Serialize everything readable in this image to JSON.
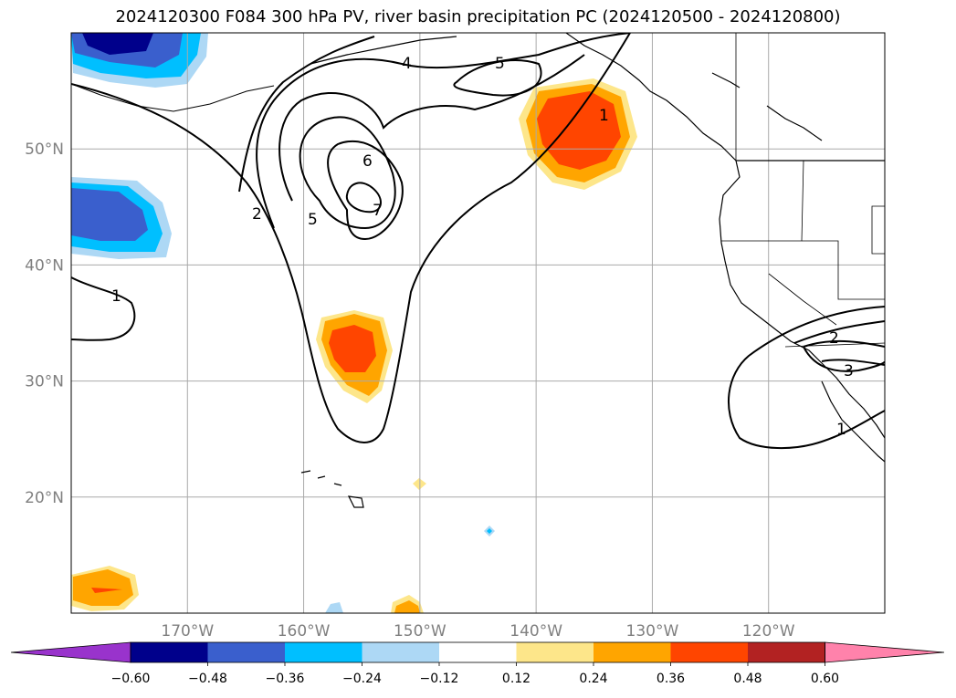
{
  "title": "2024120300 F084 300 hPa PV, river basin precipitation PC (2024120500 - 2024120800)",
  "map": {
    "lon_range": [
      -180,
      -110
    ],
    "lat_range": [
      10,
      60
    ],
    "lat_ticks": [
      {
        "value": 50,
        "label": "50°N"
      },
      {
        "value": 40,
        "label": "40°N"
      },
      {
        "value": 30,
        "label": "30°N"
      },
      {
        "value": 20,
        "label": "20°N"
      }
    ],
    "lon_ticks": [
      {
        "value": -170,
        "label": "170°W"
      },
      {
        "value": -160,
        "label": "160°W"
      },
      {
        "value": -150,
        "label": "150°W"
      },
      {
        "value": -140,
        "label": "140°W"
      },
      {
        "value": -130,
        "label": "130°W"
      },
      {
        "value": -120,
        "label": "120°W"
      }
    ],
    "grid": true
  },
  "pv_contour_labels": [
    "1",
    "2",
    "4",
    "5",
    "5",
    "6",
    "7",
    "1",
    "1",
    "2",
    "3"
  ],
  "colorbar": {
    "colors": [
      "#9933cc",
      "#00008b",
      "#3a5fcd",
      "#00bfff",
      "#add8f5",
      "#ffffff",
      "#fde68a",
      "#ffa500",
      "#ff4500",
      "#b22222",
      "#ff82ab"
    ],
    "tick_labels": [
      "−0.60",
      "−0.48",
      "−0.36",
      "−0.24",
      "−0.12",
      "0.12",
      "0.24",
      "0.36",
      "0.48",
      "0.60"
    ],
    "extend": "both"
  }
}
